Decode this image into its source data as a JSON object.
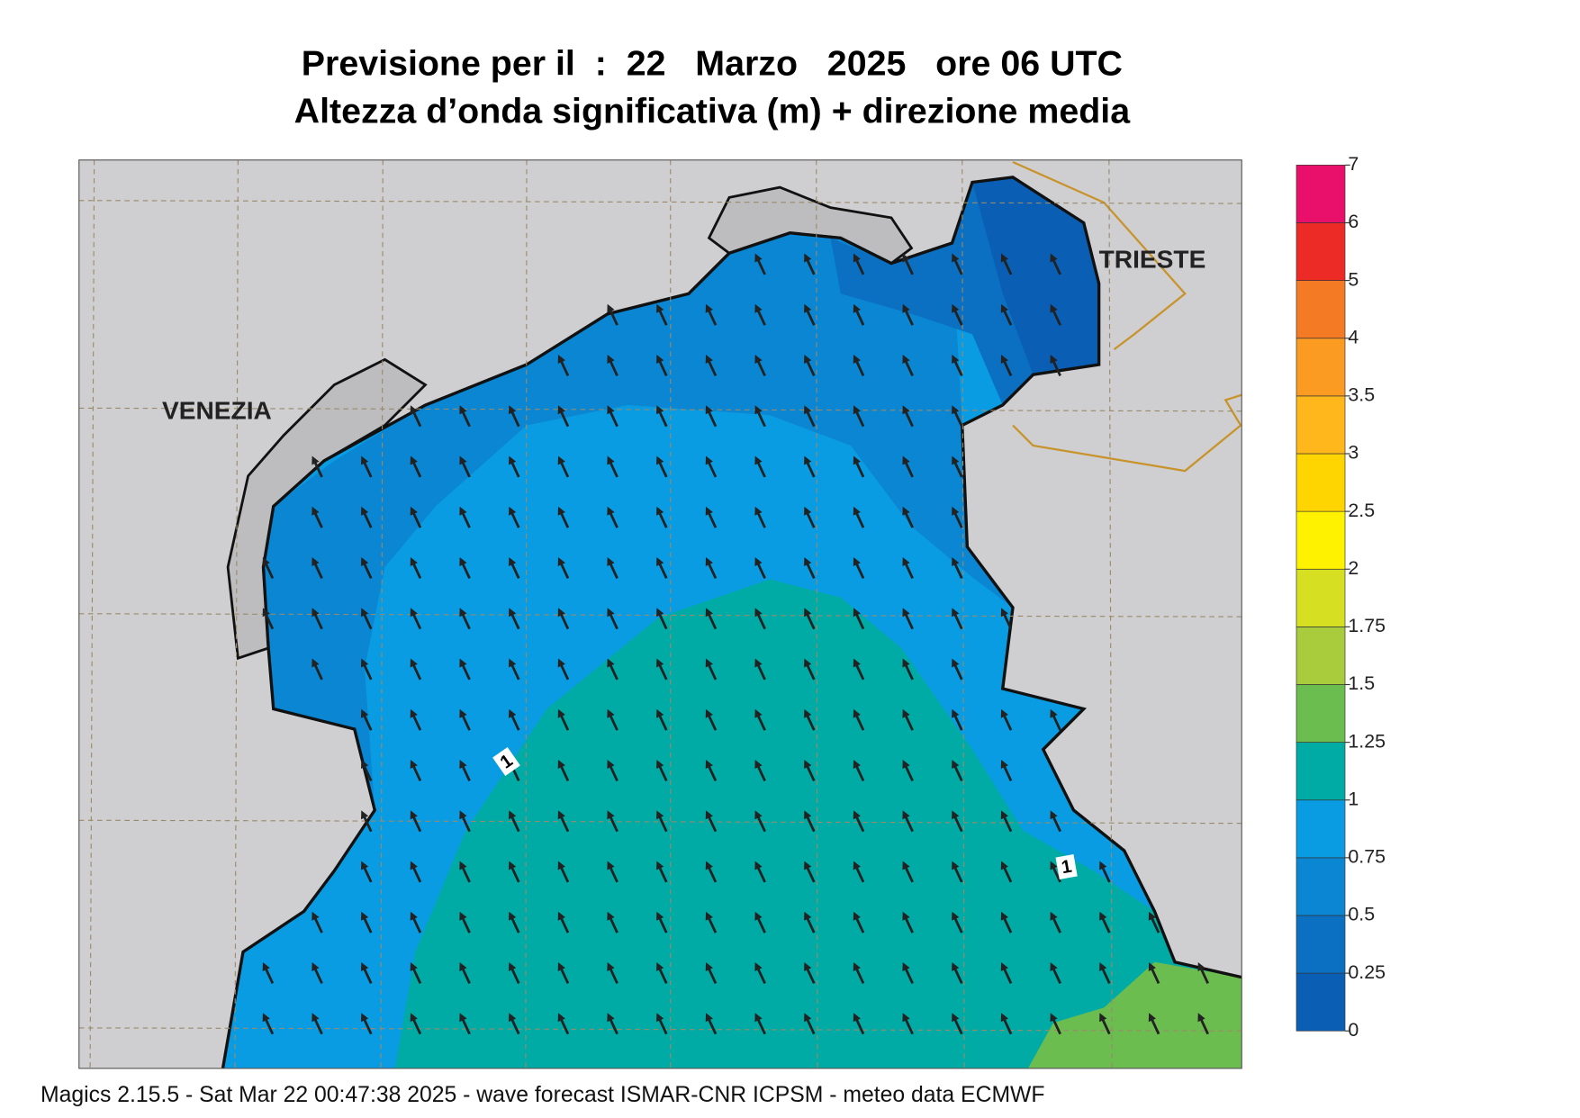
{
  "header": {
    "title": "Previsione per il  :  22   Marzo   2025   ore 06 UTC",
    "subtitle": "Altezza d’onda significativa (m) + direzione media"
  },
  "map": {
    "places": [
      "VENEZIA",
      "TRIESTE"
    ],
    "contour_labels": [
      "1",
      "1"
    ]
  },
  "colorbar": {
    "levels": [
      0,
      0.25,
      0.5,
      0.75,
      1,
      1.25,
      1.5,
      1.75,
      2,
      2.5,
      3,
      3.5,
      4,
      5,
      6,
      7
    ],
    "colors": [
      "#0a5fb4",
      "#0b70c2",
      "#0a86d2",
      "#0a9ce2",
      "#00aba6",
      "#6cbd50",
      "#a8cc3c",
      "#d6df22",
      "#fff200",
      "#ffd500",
      "#ffb71c",
      "#fb9b22",
      "#f47a24",
      "#ec2a26",
      "#e8106a"
    ]
  },
  "footer": "Magics 2.15.5 - Sat Mar 22 00:47:38 2025 - wave forecast  ISMAR-CNR  ICPSM - meteo data   ECMWF"
}
